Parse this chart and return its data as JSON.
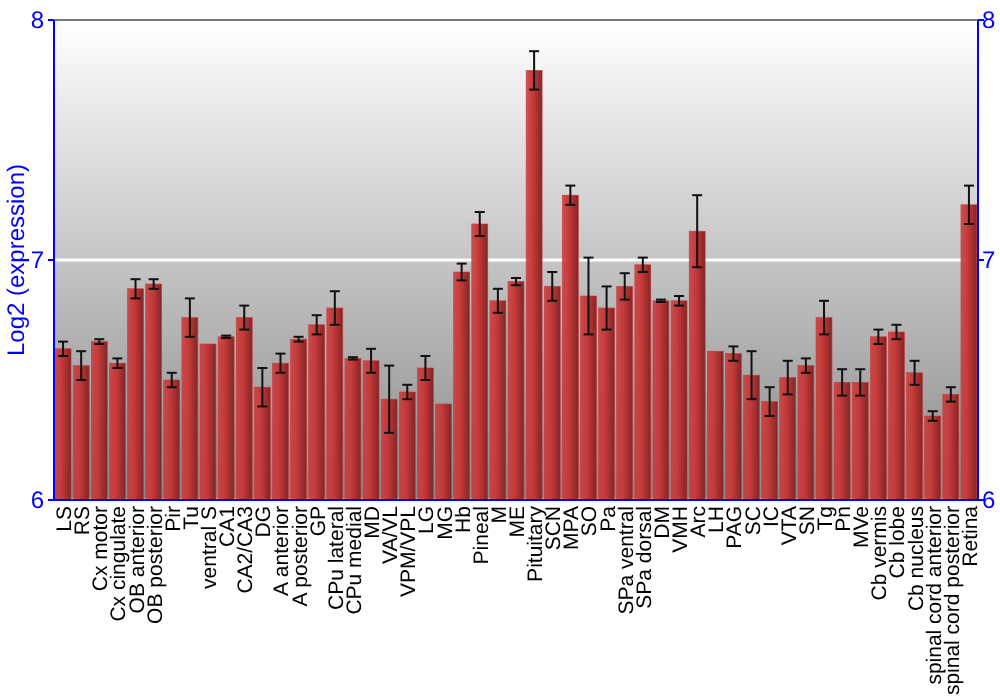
{
  "chart_data": {
    "type": "bar",
    "ylabel": "Log2 (expression)",
    "categories": [
      "LS",
      "RS",
      "Cx motor",
      "Cx cingulate",
      "OB anterior",
      "OB posterior",
      "Pir",
      "Tu",
      "ventral S",
      "CA1",
      "CA2/CA3",
      "DG",
      "A anterior",
      "A posterior",
      "GP",
      "CPu lateral",
      "CPu medial",
      "MD",
      "VA/VL",
      "VPM/VPL",
      "LG",
      "MG",
      "Hb",
      "Pineal",
      "M",
      "ME",
      "Pituitary",
      "SCN",
      "MPA",
      "SO",
      "Pa",
      "SPa ventral",
      "SPa dorsal",
      "DM",
      "VMH",
      "Arc",
      "LH",
      "PAG",
      "SC",
      "IC",
      "VTA",
      "SN",
      "Tg",
      "Pn",
      "MVe",
      "Cb vermis",
      "Cb lobe",
      "Cb nucleus",
      "spinal cord anterior",
      "spinal cord posterior",
      "Retina"
    ],
    "values": [
      6.63,
      6.56,
      6.66,
      6.57,
      6.88,
      6.9,
      6.5,
      6.76,
      6.65,
      6.68,
      6.76,
      6.47,
      6.57,
      6.67,
      6.73,
      6.8,
      6.59,
      6.58,
      6.42,
      6.45,
      6.55,
      6.4,
      6.95,
      7.15,
      6.83,
      6.91,
      7.79,
      6.89,
      7.27,
      6.85,
      6.8,
      6.89,
      6.98,
      6.83,
      6.83,
      7.12,
      6.62,
      6.61,
      6.52,
      6.41,
      6.51,
      6.56,
      6.76,
      6.49,
      6.49,
      6.68,
      6.7,
      6.53,
      6.35,
      6.44,
      7.23
    ],
    "errors": [
      0.03,
      0.06,
      0.01,
      0.02,
      0.04,
      0.02,
      0.03,
      0.08,
      null,
      0.005,
      0.05,
      0.08,
      0.04,
      0.01,
      0.04,
      0.07,
      0.005,
      0.05,
      0.14,
      0.03,
      0.05,
      null,
      0.035,
      0.05,
      0.05,
      0.015,
      0.08,
      0.06,
      0.04,
      0.16,
      0.09,
      0.055,
      0.03,
      0.005,
      0.02,
      0.15,
      null,
      0.03,
      0.1,
      0.06,
      0.07,
      0.03,
      0.07,
      0.055,
      0.055,
      0.03,
      0.03,
      0.05,
      0.02,
      0.03,
      0.08
    ],
    "color": "#c83a3a",
    "ylim": [
      6,
      8
    ],
    "yticks": [
      6,
      7,
      8
    ],
    "y2lim": [
      6,
      8
    ],
    "y2ticks": [
      6,
      7,
      8
    ],
    "grid": "y"
  }
}
